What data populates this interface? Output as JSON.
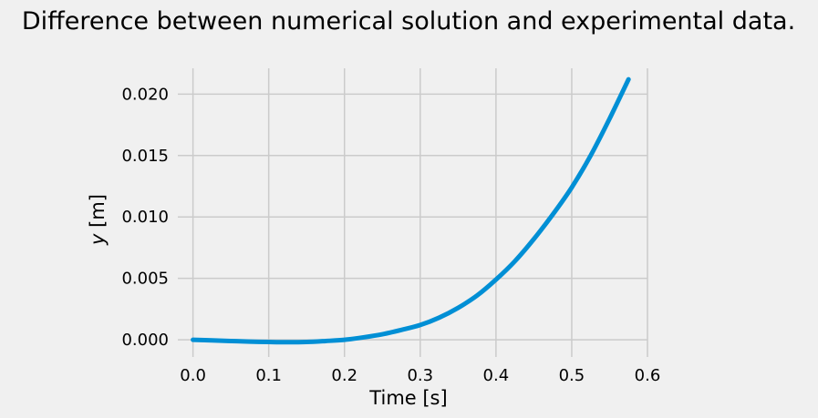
{
  "chart_data": {
    "type": "line",
    "title": "Difference between numerical solution and experimental data.",
    "xlabel": "Time [s]",
    "ylabel_var": "y",
    "ylabel_unit": " [m]",
    "xlim": [
      -0.02,
      0.6
    ],
    "ylim": [
      -0.0014,
      0.0221
    ],
    "xticks": [
      {
        "value": 0.0,
        "label": "0.0"
      },
      {
        "value": 0.1,
        "label": "0.1"
      },
      {
        "value": 0.2,
        "label": "0.2"
      },
      {
        "value": 0.3,
        "label": "0.3"
      },
      {
        "value": 0.4,
        "label": "0.4"
      },
      {
        "value": 0.5,
        "label": "0.5"
      },
      {
        "value": 0.6,
        "label": "0.6"
      }
    ],
    "yticks": [
      {
        "value": 0.0,
        "label": "0.000"
      },
      {
        "value": 0.005,
        "label": "0.005"
      },
      {
        "value": 0.01,
        "label": "0.010"
      },
      {
        "value": 0.015,
        "label": "0.015"
      },
      {
        "value": 0.02,
        "label": "0.020"
      }
    ],
    "grid": true,
    "series": [
      {
        "color": "#008fd5",
        "x": [
          0.0,
          0.025,
          0.05,
          0.075,
          0.1,
          0.125,
          0.15,
          0.175,
          0.2,
          0.225,
          0.25,
          0.275,
          0.3,
          0.325,
          0.35,
          0.375,
          0.4,
          0.425,
          0.45,
          0.475,
          0.5,
          0.525,
          0.55,
          0.575
        ],
        "y": [
          0.0,
          -5e-05,
          -0.0001,
          -0.00015,
          -0.00018,
          -0.0002,
          -0.00018,
          -0.0001,
          0.0,
          0.0002,
          0.00045,
          0.0008,
          0.0012,
          0.0018,
          0.0026,
          0.0036,
          0.0049,
          0.0064,
          0.0082,
          0.0102,
          0.0124,
          0.015,
          0.018,
          0.0212
        ]
      }
    ]
  }
}
